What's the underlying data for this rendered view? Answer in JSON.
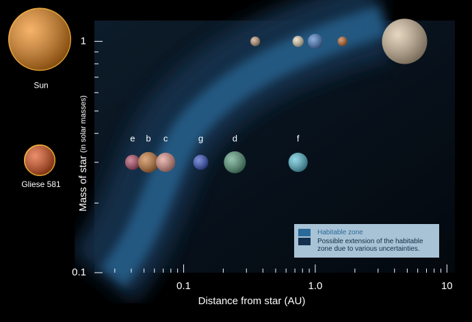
{
  "chart_data": {
    "type": "scatter",
    "xlabel": "Distance from star (AU)",
    "ylabel": "Mass of star",
    "ylabel_note": "(in solar masses)",
    "log_x": true,
    "log_y": true,
    "xlim": [
      0.021,
      11.5
    ],
    "ylim": [
      0.1,
      1.23
    ],
    "xticks": [
      0.1,
      {
        "value": 1,
        "label": "1.0"
      },
      10
    ],
    "xminor": [
      0.03,
      0.04,
      0.05,
      0.06,
      0.07,
      0.08,
      0.09,
      0.2,
      0.3,
      0.4,
      0.5,
      0.6,
      0.7,
      0.8,
      0.9,
      2,
      3,
      4,
      5,
      6,
      7,
      8,
      9
    ],
    "yticks": [
      0.1,
      1
    ],
    "yminor": [
      0.2,
      0.3,
      0.4,
      0.5,
      0.6,
      0.7,
      0.8,
      0.9
    ],
    "stars": [
      {
        "label": "Sun",
        "mass": 1,
        "color": "#f08a1a"
      },
      {
        "label": "Gliese 581",
        "mass": 0.3,
        "color": "#e0501a"
      }
    ],
    "series": [
      {
        "x": [
          0.041,
          0.054,
          0.073,
          0.135,
          0.245,
          0.74
        ],
        "values": [
          0.3,
          0.3,
          0.3,
          0.3,
          0.3,
          0.3
        ],
        "labels": [
          "e",
          "b",
          "c",
          "g",
          "d",
          "f"
        ],
        "colors": [
          "#b5506a",
          "#c87a3a",
          "#e0948a",
          "#3a56c8",
          "#5aa080",
          "#5ac0d8"
        ]
      },
      {
        "x": [
          0.35,
          0.74,
          1.0,
          1.61,
          4.77
        ],
        "values": [
          1,
          1,
          1,
          1,
          1
        ],
        "colors": [
          "#c8a080",
          "#e8d8b8",
          "#4a80c8",
          "#c06a30",
          "#d8c0a0"
        ]
      }
    ],
    "legend": [
      {
        "label": "Habitable zone",
        "color": "#2a6a9a"
      },
      {
        "label": "Possible extension of the habitable zone due to various uncertainties.",
        "color": "#12304e"
      }
    ],
    "legend_position": "lower right"
  }
}
